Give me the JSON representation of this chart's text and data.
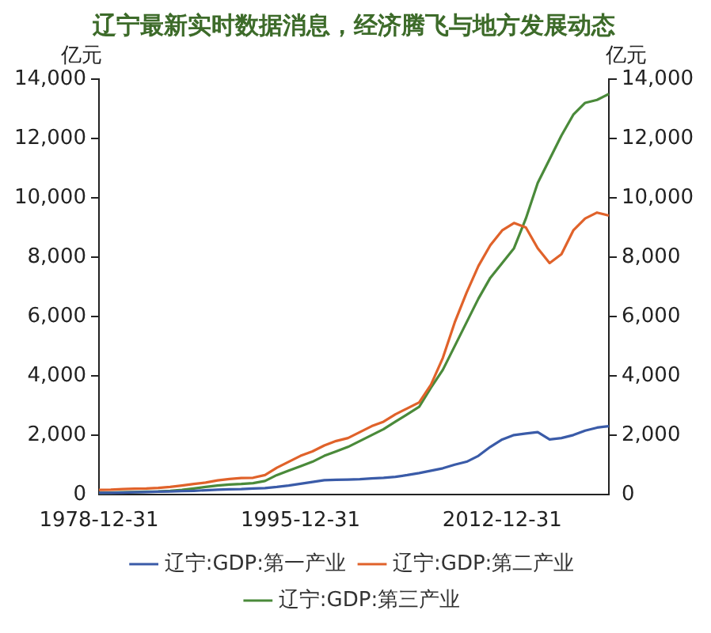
{
  "chart_data": {
    "type": "line",
    "title": "辽宁最新实时数据消息，经济腾飞与地方发展动态",
    "ylabel": "亿元",
    "y2label": "亿元",
    "x": [
      "1978-12-31",
      "1979-12-31",
      "1980-12-31",
      "1981-12-31",
      "1982-12-31",
      "1983-12-31",
      "1984-12-31",
      "1985-12-31",
      "1986-12-31",
      "1987-12-31",
      "1988-12-31",
      "1989-12-31",
      "1990-12-31",
      "1991-12-31",
      "1992-12-31",
      "1993-12-31",
      "1994-12-31",
      "1995-12-31",
      "1996-12-31",
      "1997-12-31",
      "1998-12-31",
      "1999-12-31",
      "2000-12-31",
      "2001-12-31",
      "2002-12-31",
      "2003-12-31",
      "2004-12-31",
      "2005-12-31",
      "2006-12-31",
      "2007-12-31",
      "2008-12-31",
      "2009-12-31",
      "2010-12-31",
      "2011-12-31",
      "2012-12-31",
      "2013-12-31",
      "2014-12-31",
      "2015-12-31",
      "2016-12-31",
      "2017-12-31",
      "2018-12-31",
      "2019-12-31",
      "2020-12-31",
      "2021-12-31"
    ],
    "xlim": [
      "1978-12-31",
      "2021-12-31"
    ],
    "xticks": [
      "1978-12-31",
      "1995-12-31",
      "2012-12-31"
    ],
    "ylim": [
      0,
      14000
    ],
    "yticks": [
      0,
      {
        "value": 2000,
        "label": "2,000"
      },
      {
        "value": 4000,
        "label": "4,000"
      },
      {
        "value": 6000,
        "label": "6,000"
      },
      {
        "value": 8000,
        "label": "8,000"
      },
      {
        "value": 10000,
        "label": "10,000"
      },
      {
        "value": 12000,
        "label": "12,000"
      },
      {
        "value": 14000,
        "label": "14,000"
      }
    ],
    "y2lim": [
      0,
      14000
    ],
    "y2ticks": [
      0,
      {
        "value": 2000,
        "label": "2,000"
      },
      {
        "value": 4000,
        "label": "4,000"
      },
      {
        "value": 6000,
        "label": "6,000"
      },
      {
        "value": 8000,
        "label": "8,000"
      },
      {
        "value": 10000,
        "label": "10,000"
      },
      {
        "value": 12000,
        "label": "12,000"
      },
      {
        "value": 14000,
        "label": "14,000"
      }
    ],
    "series": [
      {
        "name": "辽宁:GDP:第一产业",
        "color": "#3a5ba8",
        "values": [
          50,
          50,
          60,
          70,
          80,
          90,
          100,
          110,
          120,
          140,
          160,
          170,
          180,
          200,
          210,
          250,
          300,
          360,
          420,
          480,
          490,
          500,
          510,
          540,
          560,
          590,
          650,
          720,
          800,
          880,
          1000,
          1100,
          1300,
          1600,
          1850,
          2000,
          2050,
          2100,
          1850,
          1900,
          2000,
          2150,
          2250,
          2300
        ]
      },
      {
        "name": "辽宁:GDP:第二产业",
        "color": "#e0622a",
        "values": [
          150,
          160,
          180,
          190,
          200,
          220,
          250,
          300,
          350,
          400,
          470,
          520,
          550,
          560,
          650,
          900,
          1100,
          1300,
          1450,
          1650,
          1800,
          1900,
          2100,
          2300,
          2450,
          2700,
          2900,
          3100,
          3700,
          4600,
          5800,
          6800,
          7700,
          8400,
          8900,
          9150,
          9000,
          8300,
          7800,
          8100,
          8900,
          9300,
          9500,
          9400
        ]
      },
      {
        "name": "辽宁:GDP:第三产业",
        "color": "#4a8a3a",
        "values": [
          50,
          60,
          70,
          80,
          90,
          100,
          120,
          150,
          200,
          250,
          300,
          330,
          350,
          380,
          450,
          650,
          800,
          950,
          1100,
          1300,
          1450,
          1600,
          1800,
          2000,
          2200,
          2450,
          2700,
          2950,
          3600,
          4200,
          5000,
          5800,
          6600,
          7300,
          7800,
          8300,
          9300,
          10500,
          11300,
          12100,
          12800,
          13200,
          13300,
          13500
        ]
      }
    ],
    "legend": "bottom",
    "marker": "none",
    "line_style": "solid",
    "grid": false
  }
}
